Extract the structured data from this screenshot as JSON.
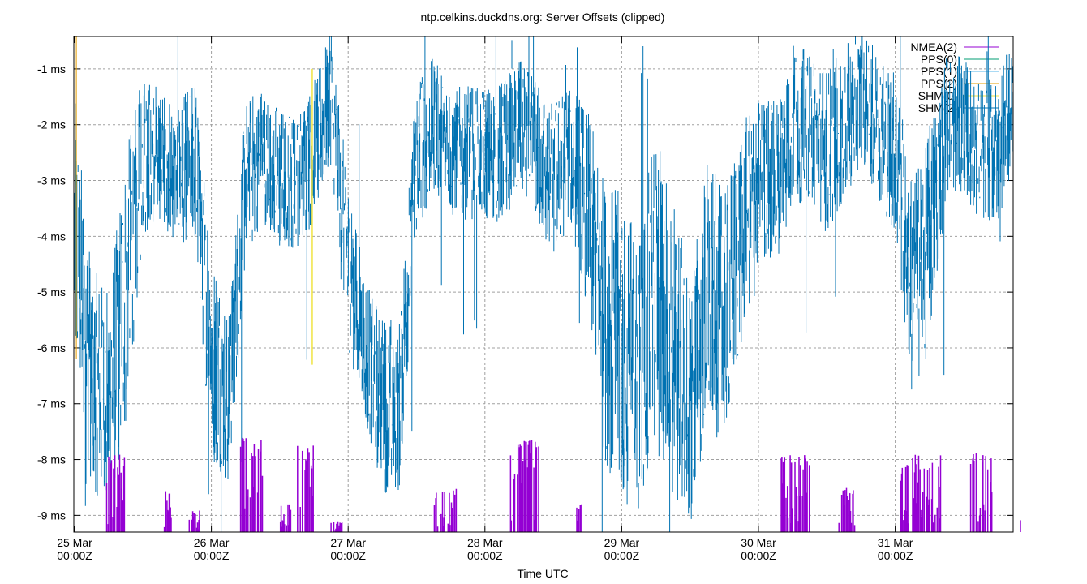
{
  "chart_data": {
    "type": "line",
    "title": "ntp.celkins.duckdns.org: Server Offsets (clipped)",
    "xlabel": "Time UTC",
    "ylabel": "",
    "ylim": [
      -9.3,
      -0.42
    ],
    "xlim": [
      "25 Mar 00:00Z",
      "31 Mar 20:45Z"
    ],
    "grid": true,
    "legend_position": "top-right",
    "y_ticks": [
      "-1 ms",
      "-2 ms",
      "-3 ms",
      "-4 ms",
      "-5 ms",
      "-6 ms",
      "-7 ms",
      "-8 ms",
      "-9 ms"
    ],
    "y_tick_values": [
      -1,
      -2,
      -3,
      -4,
      -5,
      -6,
      -7,
      -8,
      -9
    ],
    "x_ticks": [
      {
        "day": "25 Mar",
        "time": "00:00Z",
        "hours": 0
      },
      {
        "day": "26 Mar",
        "time": "00:00Z",
        "hours": 24
      },
      {
        "day": "27 Mar",
        "time": "00:00Z",
        "hours": 48
      },
      {
        "day": "28 Mar",
        "time": "00:00Z",
        "hours": 72
      },
      {
        "day": "29 Mar",
        "time": "00:00Z",
        "hours": 96
      },
      {
        "day": "30 Mar",
        "time": "00:00Z",
        "hours": 120
      },
      {
        "day": "31 Mar",
        "time": "00:00Z",
        "hours": 144
      }
    ],
    "series": [
      {
        "name": "NMEA(2)",
        "color": "#9400d3"
      },
      {
        "name": "PPS(0)",
        "color": "#009e73"
      },
      {
        "name": "PPS(1)",
        "color": "#56b4e9"
      },
      {
        "name": "PPS(2)",
        "color": "#e69f00"
      },
      {
        "name": "SHM(0)",
        "color": "#f0e442"
      },
      {
        "name": "SHM(2)",
        "color": "#0072b2"
      }
    ],
    "shm2_trend": {
      "note_units": "hours since 25 Mar 00:00Z, offset ms, spread ms",
      "points": [
        [
          0,
          -4,
          2.5
        ],
        [
          3,
          -6.5,
          2
        ],
        [
          6,
          -7,
          2
        ],
        [
          9,
          -5,
          2.5
        ],
        [
          12,
          -2.5,
          1.5
        ],
        [
          15,
          -2.5,
          1.2
        ],
        [
          18,
          -3,
          1.2
        ],
        [
          21,
          -2.5,
          1.5
        ],
        [
          24,
          -6,
          2
        ],
        [
          27,
          -7,
          1.5
        ],
        [
          30,
          -3,
          1.5
        ],
        [
          33,
          -2.5,
          1.2
        ],
        [
          36,
          -3,
          1.3
        ],
        [
          39,
          -3,
          1.2
        ],
        [
          42,
          -2.5,
          1.3
        ],
        [
          45,
          -1.5,
          1.2
        ],
        [
          48,
          -4.5,
          1.5
        ],
        [
          51,
          -6,
          1.3
        ],
        [
          54,
          -7,
          1.6
        ],
        [
          57,
          -7,
          1.6
        ],
        [
          60,
          -2.5,
          1.5
        ],
        [
          63,
          -2,
          1.2
        ],
        [
          66,
          -2.5,
          1.2
        ],
        [
          69,
          -2.5,
          1.2
        ],
        [
          72,
          -2.5,
          1.2
        ],
        [
          75,
          -2.5,
          1.3
        ],
        [
          78,
          -2,
          1.2
        ],
        [
          81,
          -2.5,
          1.3
        ],
        [
          84,
          -3,
          1.4
        ],
        [
          87,
          -2.5,
          1.3
        ],
        [
          90,
          -3.5,
          1.8
        ],
        [
          93,
          -5.5,
          2.5
        ],
        [
          96,
          -6,
          2.8
        ],
        [
          99,
          -6.5,
          2.5
        ],
        [
          102,
          -5,
          3
        ],
        [
          105,
          -6,
          2.8
        ],
        [
          108,
          -7,
          2.2
        ],
        [
          111,
          -5,
          2.5
        ],
        [
          114,
          -5.5,
          2.2
        ],
        [
          117,
          -4,
          2
        ],
        [
          120,
          -3,
          1.5
        ],
        [
          123,
          -3,
          1.5
        ],
        [
          126,
          -2,
          1.5
        ],
        [
          129,
          -2,
          1.3
        ],
        [
          132,
          -2.5,
          1.5
        ],
        [
          135,
          -2,
          1.4
        ],
        [
          138,
          -1.5,
          1.2
        ],
        [
          141,
          -2,
          1.3
        ],
        [
          144,
          -2.5,
          1.5
        ],
        [
          147,
          -5,
          2
        ],
        [
          150,
          -4,
          2
        ],
        [
          153,
          -2,
          1.3
        ],
        [
          156,
          -2,
          1.2
        ],
        [
          159,
          -2.5,
          1.3
        ],
        [
          162,
          -2.5,
          1.3
        ],
        [
          165,
          -1.5,
          1.2
        ]
      ]
    },
    "nmea2_bursts": {
      "note_units": "start hour, end hour, peak offset ms",
      "bursts": [
        [
          5.5,
          9,
          -7.9
        ],
        [
          15.5,
          17.5,
          -8.5
        ],
        [
          20,
          22,
          -8.9
        ],
        [
          29,
          33,
          -7.6
        ],
        [
          36,
          38,
          -8.8
        ],
        [
          39,
          42,
          -7.7
        ],
        [
          45,
          47,
          -9.1
        ],
        [
          63,
          67,
          -8.5
        ],
        [
          76.5,
          81.5,
          -7.6
        ],
        [
          88,
          89,
          -8.8
        ],
        [
          124,
          129,
          -7.9
        ],
        [
          134,
          137,
          -8.5
        ],
        [
          145,
          152,
          -7.9
        ],
        [
          157,
          161,
          -7.8
        ],
        [
          165.5,
          166,
          -8.8
        ]
      ]
    },
    "shm0_spike": {
      "hours": 41.7,
      "from": -1.0,
      "to": -6.3
    },
    "pps2_spike": {
      "hours": 0.3,
      "from": -0.42,
      "to": -6.2
    }
  }
}
